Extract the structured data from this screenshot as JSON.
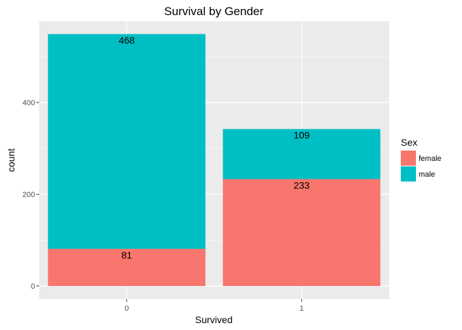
{
  "chart_data": {
    "type": "bar",
    "stacked": true,
    "title": "Survival by Gender",
    "xlabel": "Survived",
    "ylabel": "count",
    "categories": [
      "0",
      "1"
    ],
    "series": [
      {
        "name": "female",
        "values": [
          81,
          233
        ],
        "color": "#F8766D"
      },
      {
        "name": "male",
        "values": [
          468,
          109
        ],
        "color": "#00BFC4"
      }
    ],
    "ylim": [
      0,
      580
    ],
    "yticks": [
      0,
      200,
      400
    ],
    "grid": true,
    "legend": {
      "title": "Sex",
      "position": "right"
    },
    "colors": {
      "panel": "#EBEBEB",
      "grid": "#FFFFFF"
    }
  }
}
